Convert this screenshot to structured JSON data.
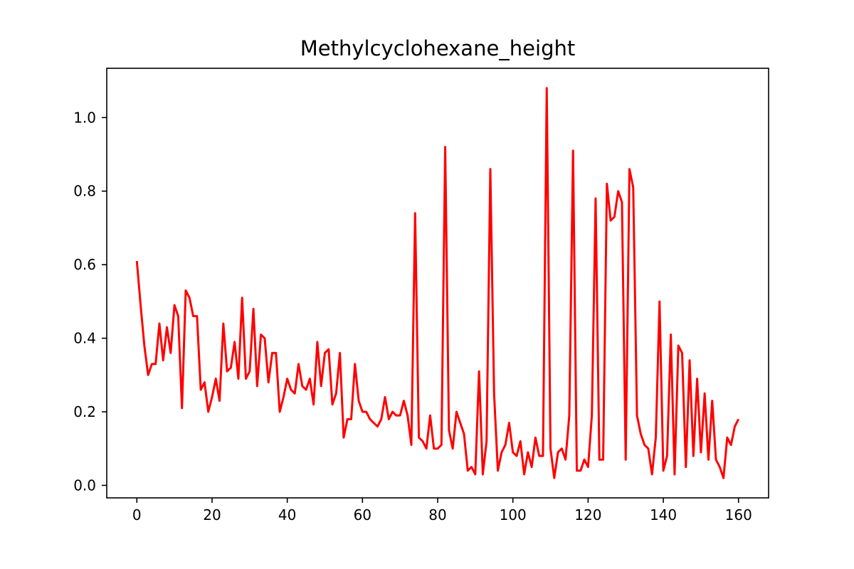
{
  "chart_data": {
    "type": "line",
    "title": "Methylcyclohexane_height",
    "xlabel": "",
    "ylabel": "",
    "xlim": [
      -8,
      168
    ],
    "ylim": [
      -0.034,
      1.134
    ],
    "xticks": [
      0,
      20,
      40,
      60,
      80,
      100,
      120,
      140,
      160
    ],
    "xtick_labels": [
      "0",
      "20",
      "40",
      "60",
      "80",
      "100",
      "120",
      "140",
      "160"
    ],
    "yticks": [
      0.0,
      0.2,
      0.4,
      0.6,
      0.8,
      1.0
    ],
    "ytick_labels": [
      "0.0",
      "0.2",
      "0.4",
      "0.6",
      "0.8",
      "1.0"
    ],
    "grid": false,
    "series": [
      {
        "color": "#ff0000",
        "x": [
          0,
          1,
          2,
          3,
          4,
          5,
          6,
          7,
          8,
          9,
          10,
          11,
          12,
          13,
          14,
          15,
          16,
          17,
          18,
          19,
          20,
          21,
          22,
          23,
          24,
          25,
          26,
          27,
          28,
          29,
          30,
          31,
          32,
          33,
          34,
          35,
          36,
          37,
          38,
          39,
          40,
          41,
          42,
          43,
          44,
          45,
          46,
          47,
          48,
          49,
          50,
          51,
          52,
          53,
          54,
          55,
          56,
          57,
          58,
          59,
          60,
          61,
          62,
          63,
          64,
          65,
          66,
          67,
          68,
          69,
          70,
          71,
          72,
          73,
          74,
          75,
          76,
          77,
          78,
          79,
          80,
          81,
          82,
          83,
          84,
          85,
          86,
          87,
          88,
          89,
          90,
          91,
          92,
          93,
          94,
          95,
          96,
          97,
          98,
          99,
          100,
          101,
          102,
          103,
          104,
          105,
          106,
          107,
          108,
          109,
          110,
          111,
          112,
          113,
          114,
          115,
          116,
          117,
          118,
          119,
          120,
          121,
          122,
          123,
          124,
          125,
          126,
          127,
          128,
          129,
          130,
          131,
          132,
          133,
          134,
          135,
          136,
          137,
          138,
          139,
          140,
          141,
          142,
          143,
          144,
          145,
          146,
          147,
          148,
          149,
          150,
          151,
          152,
          153,
          154,
          155,
          156,
          157,
          158,
          159,
          160
        ],
        "y": [
          0.61,
          0.49,
          0.38,
          0.3,
          0.33,
          0.33,
          0.44,
          0.34,
          0.43,
          0.36,
          0.49,
          0.46,
          0.21,
          0.53,
          0.51,
          0.46,
          0.46,
          0.26,
          0.28,
          0.2,
          0.24,
          0.29,
          0.23,
          0.44,
          0.31,
          0.32,
          0.39,
          0.29,
          0.51,
          0.29,
          0.31,
          0.48,
          0.27,
          0.41,
          0.4,
          0.28,
          0.36,
          0.36,
          0.2,
          0.24,
          0.29,
          0.26,
          0.25,
          0.33,
          0.27,
          0.26,
          0.29,
          0.22,
          0.39,
          0.27,
          0.36,
          0.37,
          0.22,
          0.25,
          0.36,
          0.13,
          0.18,
          0.18,
          0.33,
          0.23,
          0.2,
          0.2,
          0.18,
          0.17,
          0.16,
          0.18,
          0.24,
          0.18,
          0.2,
          0.19,
          0.19,
          0.23,
          0.19,
          0.11,
          0.74,
          0.13,
          0.12,
          0.1,
          0.19,
          0.1,
          0.1,
          0.11,
          0.92,
          0.15,
          0.1,
          0.2,
          0.17,
          0.14,
          0.04,
          0.05,
          0.03,
          0.31,
          0.03,
          0.12,
          0.86,
          0.25,
          0.04,
          0.09,
          0.11,
          0.17,
          0.09,
          0.08,
          0.12,
          0.03,
          0.09,
          0.05,
          0.13,
          0.08,
          0.08,
          1.08,
          0.1,
          0.02,
          0.09,
          0.1,
          0.07,
          0.19,
          0.91,
          0.04,
          0.04,
          0.07,
          0.05,
          0.19,
          0.78,
          0.07,
          0.07,
          0.82,
          0.72,
          0.73,
          0.8,
          0.77,
          0.07,
          0.86,
          0.81,
          0.19,
          0.14,
          0.11,
          0.1,
          0.03,
          0.13,
          0.5,
          0.04,
          0.08,
          0.41,
          0.03,
          0.38,
          0.36,
          0.05,
          0.34,
          0.08,
          0.29,
          0.09,
          0.25,
          0.07,
          0.23,
          0.07,
          0.05,
          0.02,
          0.13,
          0.11,
          0.16,
          0.18
        ]
      }
    ]
  }
}
